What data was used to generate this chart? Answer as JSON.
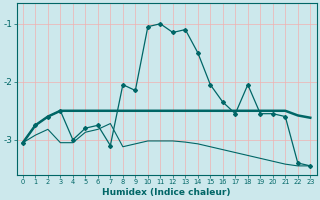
{
  "xlabel": "Humidex (Indice chaleur)",
  "bg_color": "#cce8ec",
  "grid_color": "#f0b0b0",
  "line_color": "#006666",
  "x_values": [
    0,
    1,
    2,
    3,
    4,
    5,
    6,
    7,
    8,
    9,
    10,
    11,
    12,
    13,
    14,
    15,
    16,
    17,
    18,
    19,
    20,
    21,
    22,
    23
  ],
  "line1": [
    -3.05,
    -2.75,
    -2.6,
    -2.5,
    -3.0,
    -2.8,
    -2.75,
    -3.1,
    -2.05,
    -2.15,
    -1.05,
    -1.0,
    -1.15,
    -1.1,
    -1.5,
    -2.05,
    -2.35,
    -2.55,
    -2.05,
    -2.55,
    -2.55,
    -2.6,
    -3.4,
    -3.45
  ],
  "line2": [
    -3.05,
    -2.75,
    -2.6,
    -2.5,
    -2.5,
    -2.5,
    -2.5,
    -2.5,
    -2.5,
    -2.5,
    -2.5,
    -2.5,
    -2.5,
    -2.5,
    -2.5,
    -2.5,
    -2.5,
    -2.5,
    -2.5,
    -2.5,
    -2.5,
    -2.5,
    -2.58,
    -2.62
  ],
  "line3": [
    -3.05,
    -2.92,
    -2.82,
    -3.05,
    -3.05,
    -2.87,
    -2.82,
    -2.72,
    -3.12,
    -3.07,
    -3.02,
    -3.02,
    -3.02,
    -3.04,
    -3.07,
    -3.12,
    -3.17,
    -3.22,
    -3.27,
    -3.32,
    -3.37,
    -3.42,
    -3.45,
    -3.45
  ],
  "ylim": [
    -3.6,
    -0.65
  ],
  "xlim": [
    -0.5,
    23.5
  ],
  "yticks": [
    -3,
    -2,
    -1
  ],
  "marker": "D"
}
